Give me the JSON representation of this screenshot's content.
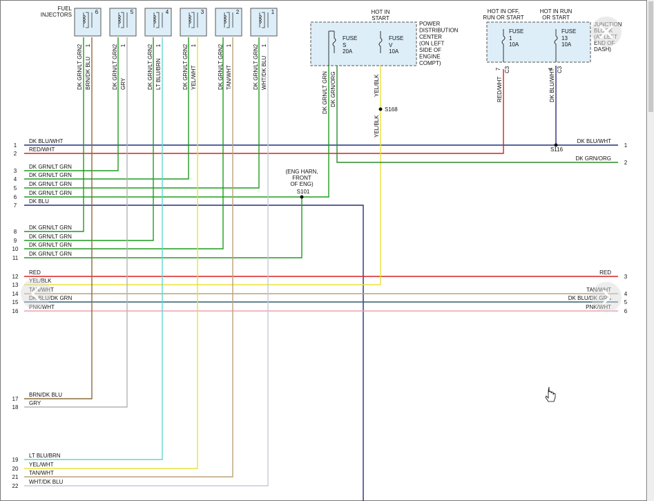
{
  "injectors": {
    "title": [
      "FUEL",
      "INJECTORS"
    ],
    "items": [
      {
        "number": "6",
        "pins": [
          "2",
          "1"
        ],
        "wires": [
          {
            "label": "DK GRN/LT GRN",
            "color": "#1c9c1c"
          },
          {
            "label": "BRN/DK BLU",
            "color": "#8a6a3a"
          }
        ]
      },
      {
        "number": "5",
        "pins": [
          "2",
          "1"
        ],
        "wires": [
          {
            "label": "DK GRN/LT GRN",
            "color": "#1c9c1c"
          },
          {
            "label": "GRY",
            "color": "#b4b4b4"
          }
        ]
      },
      {
        "number": "4",
        "pins": [
          "2",
          "1"
        ],
        "wires": [
          {
            "label": "DK GRN/LT GRN",
            "color": "#1c9c1c"
          },
          {
            "label": "LT BLU/BRN",
            "color": "#5fd8d0"
          }
        ]
      },
      {
        "number": "3",
        "pins": [
          "2",
          "1"
        ],
        "wires": [
          {
            "label": "DK GRN/LT GRN",
            "color": "#1c9c1c"
          },
          {
            "label": "YEL/WHT",
            "color": "#e8e23a"
          }
        ]
      },
      {
        "number": "2",
        "pins": [
          "2",
          "1"
        ],
        "wires": [
          {
            "label": "DK GRN/LT GRN",
            "color": "#1c9c1c"
          },
          {
            "label": "TAN/WHT",
            "color": "#bba178"
          }
        ]
      },
      {
        "number": "1",
        "pins": [
          "2",
          "1"
        ],
        "wires": [
          {
            "label": "DK GRN/LT GRN",
            "color": "#1c9c1c"
          },
          {
            "label": "WHT/DK BLU",
            "color": "#c4cad6"
          }
        ]
      }
    ]
  },
  "pdc": {
    "hot": [
      "HOT IN",
      "START"
    ],
    "fuses": [
      {
        "label": "FUSE",
        "id": "S",
        "rating": "20A"
      },
      {
        "label": "FUSE",
        "id": "V",
        "rating": "10A"
      }
    ],
    "name": [
      "POWER",
      "DISTRIBUTION",
      "CENTER",
      "(ON LEFT",
      "SIDE OF",
      "ENGINE",
      "COMPT)"
    ],
    "wires": [
      {
        "label": "DK GRN/LT GRN",
        "color": "#1c9c1c"
      },
      {
        "label": "DK GRN/ORG",
        "color": "#2a8a2a"
      },
      {
        "label": "YEL/BLK",
        "color": "#e8e23a"
      }
    ],
    "splice": "S168",
    "wire_below": "YEL/BLK"
  },
  "junction_block": {
    "hot": [
      [
        "HOT IN OFF,",
        "RUN OR START"
      ],
      [
        "HOT IN RUN",
        "OR START"
      ]
    ],
    "fuses": [
      {
        "label": "FUSE",
        "id": "1",
        "rating": "10A",
        "pin": "7",
        "connector": "C3",
        "wire": "RED/WHT",
        "color": "#d62020"
      },
      {
        "label": "FUSE",
        "id": "13",
        "rating": "10A",
        "pin": "4",
        "connector": "C3",
        "wire": "DK BLU/WHT",
        "color": "#1f2f7a"
      }
    ],
    "name": [
      "JUNCTION",
      "BLOCK",
      "(AT LEFT",
      "END OF",
      "DASH)"
    ],
    "splice": "S116"
  },
  "splice_s101": {
    "note": [
      "(ENG HARN,",
      "FRONT",
      "OF ENG)"
    ],
    "name": "S101"
  },
  "left_connector": [
    {
      "pin": "1",
      "label": "DK BLU/WHT",
      "color": "#1f2f7a"
    },
    {
      "pin": "2",
      "label": "RED/WHT",
      "color": "#d62020"
    },
    {
      "pin": "3",
      "label": "DK GRN/LT GRN",
      "color": "#1c9c1c"
    },
    {
      "pin": "4",
      "label": "DK GRN/LT GRN",
      "color": "#1c9c1c"
    },
    {
      "pin": "5",
      "label": "DK GRN/LT GRN",
      "color": "#1c9c1c"
    },
    {
      "pin": "6",
      "label": "DK GRN/LT GRN",
      "color": "#1c9c1c"
    },
    {
      "pin": "7",
      "label": "DK BLU",
      "color": "#1f2f7a"
    },
    {
      "pin": "8",
      "label": "DK GRN/LT GRN",
      "color": "#1c9c1c"
    },
    {
      "pin": "9",
      "label": "DK GRN/LT GRN",
      "color": "#1c9c1c"
    },
    {
      "pin": "10",
      "label": "DK GRN/LT GRN",
      "color": "#1c9c1c"
    },
    {
      "pin": "11",
      "label": "DK GRN/LT GRN",
      "color": "#1c9c1c"
    },
    {
      "pin": "12",
      "label": "RED",
      "color": "#d62020"
    },
    {
      "pin": "13",
      "label": "YEL/BLK",
      "color": "#e8e23a"
    },
    {
      "pin": "14",
      "label": "TAN/WHT",
      "color": "#bba178"
    },
    {
      "pin": "15",
      "label": "DK BLU/DK GRN",
      "color": "#2d5a6a"
    },
    {
      "pin": "16",
      "label": "PNK/WHT",
      "color": "#eba0ae"
    },
    {
      "pin": "17",
      "label": "BRN/DK BLU",
      "color": "#8a6a3a"
    },
    {
      "pin": "18",
      "label": "GRY",
      "color": "#b4b4b4"
    },
    {
      "pin": "19",
      "label": "LT BLU/BRN",
      "color": "#5fd8d0"
    },
    {
      "pin": "20",
      "label": "YEL/WHT",
      "color": "#e8e23a"
    },
    {
      "pin": "21",
      "label": "TAN/WHT",
      "color": "#bba178"
    },
    {
      "pin": "22",
      "label": "WHT/DK BLU",
      "color": "#c4cad6"
    }
  ],
  "right_connector": [
    {
      "pin": "1",
      "label": "DK BLU/WHT"
    },
    {
      "pin": "2",
      "label": "DK GRN/ORG"
    },
    {
      "pin": "3",
      "label": "RED"
    },
    {
      "pin": "4",
      "label": "TAN/WHT"
    },
    {
      "pin": "5",
      "label": "DK BLU/DK GRN"
    },
    {
      "pin": "6",
      "label": "PNK/WHT"
    }
  ]
}
